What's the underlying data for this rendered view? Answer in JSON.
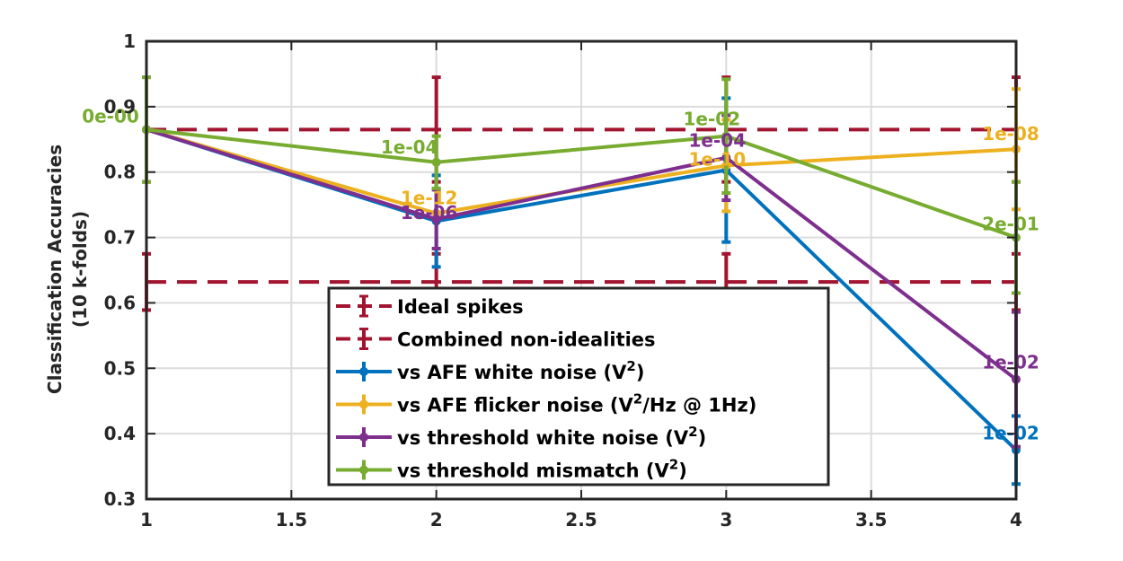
{
  "chart_data": {
    "type": "line",
    "ylabel": "Classification Accuracies",
    "ylabel_2": "(10 k-folds)",
    "xlabel": "",
    "xlim": [
      1,
      4
    ],
    "ylim": [
      0.3,
      1
    ],
    "xticks": [
      "1",
      "1.5",
      "2",
      "2.5",
      "3",
      "3.5",
      "4"
    ],
    "yticks": [
      "0.3",
      "0.4",
      "0.5",
      "0.6",
      "0.7",
      "0.8",
      "0.9",
      "1"
    ],
    "grid": true,
    "legend_position": "bottom-center",
    "reference_lines": [
      {
        "name": "Ideal spikes",
        "value": 0.865,
        "err": 0.08,
        "color": "#a2142f",
        "style": "dashed"
      },
      {
        "name": "Combined non-idealities",
        "value": 0.632,
        "err": 0.043,
        "color": "#a2142f",
        "style": "dashed"
      }
    ],
    "series": [
      {
        "name": "vs AFE white noise",
        "name_suffix": "(V",
        "name_sup": "2",
        "name_end": ")",
        "color": "#0072bd",
        "x": [
          1,
          2,
          3,
          4
        ],
        "y": [
          0.865,
          0.725,
          0.803,
          0.375
        ],
        "err": [
          0.0,
          0.07,
          0.11,
          0.052
        ],
        "labels": [
          "",
          "",
          "",
          "1e-02"
        ]
      },
      {
        "name": "vs AFE flicker noise",
        "name_suffix": "(V",
        "name_sup": "2",
        "name_end": "/Hz @ 1Hz)",
        "color": "#edb120",
        "x": [
          1,
          2,
          3,
          4
        ],
        "y": [
          0.865,
          0.737,
          0.81,
          0.835
        ],
        "err": [
          0.0,
          0.0,
          0.07,
          0.092
        ],
        "labels": [
          "",
          "1e-12",
          "1e-10",
          "1e-08"
        ]
      },
      {
        "name": "vs threshold white noise",
        "name_suffix": "(V",
        "name_sup": "2",
        "name_end": ")",
        "color": "#7e2f8e",
        "x": [
          1,
          2,
          3,
          4
        ],
        "y": [
          0.865,
          0.728,
          0.822,
          0.483
        ],
        "err": [
          0.0,
          0.045,
          0.065,
          0.103
        ],
        "labels": [
          "",
          "1e-06",
          "1e-04",
          "1e-02"
        ]
      },
      {
        "name": "vs threshold mismatch",
        "name_suffix": "(V",
        "name_sup": "2",
        "name_end": ")",
        "color": "#77ac30",
        "x": [
          1,
          2,
          3,
          4
        ],
        "y": [
          0.865,
          0.815,
          0.855,
          0.7
        ],
        "err": [
          0.08,
          0.04,
          0.087,
          0.085
        ],
        "labels": [
          "0e-00",
          "1e-04",
          "1e-02",
          "2e-01"
        ]
      }
    ]
  }
}
